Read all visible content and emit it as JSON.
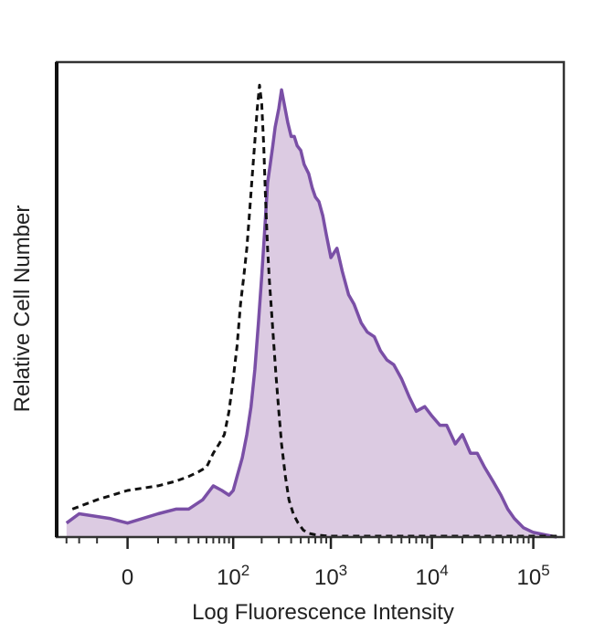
{
  "chart_data": {
    "type": "area",
    "title": "",
    "xlabel": "Log Fluorescence Intensity",
    "ylabel": "Relative Cell Number",
    "x_scale": "biexponential",
    "x_range": [
      -40,
      200000
    ],
    "y_range": [
      0,
      100
    ],
    "grid": false,
    "legend": "none",
    "x_ticks": [
      {
        "value": 0,
        "base": "0",
        "exp": ""
      },
      {
        "value": 100,
        "base": "10",
        "exp": "2"
      },
      {
        "value": 1000,
        "base": "10",
        "exp": "3"
      },
      {
        "value": 10000,
        "base": "10",
        "exp": "4"
      },
      {
        "value": 100000,
        "base": "10",
        "exp": "5"
      }
    ],
    "series": [
      {
        "style": "filled-solid",
        "color": "#7a4fa6",
        "fill": "#dccbe2",
        "x": [
          -30,
          -20,
          -5,
          0,
          10,
          20,
          30,
          45,
          60,
          75,
          90,
          100,
          110,
          125,
          140,
          155,
          170,
          185,
          200,
          215,
          230,
          245,
          260,
          275,
          300,
          320,
          340,
          370,
          400,
          430,
          460,
          500,
          540,
          600,
          650,
          700,
          760,
          830,
          900,
          1000,
          1150,
          1300,
          1500,
          1700,
          2000,
          2300,
          2700,
          3100,
          3600,
          4200,
          5000,
          6000,
          7000,
          8500,
          10000,
          12000,
          14000,
          17000,
          20000,
          24000,
          28000,
          33000,
          40000,
          48000,
          56000,
          65000,
          80000,
          100000,
          130000,
          170000
        ],
        "y": [
          3,
          5,
          4,
          3,
          5,
          6,
          6,
          8,
          11,
          10,
          9,
          10,
          13,
          17,
          22,
          28,
          36,
          46,
          56,
          66,
          76,
          80,
          84,
          88,
          92,
          96,
          93,
          89,
          86,
          86,
          84,
          83,
          80,
          78,
          75,
          73,
          72,
          69,
          65,
          60,
          62,
          57,
          52,
          50,
          46,
          44,
          43,
          40,
          38,
          37,
          34,
          30,
          27,
          28,
          26,
          24,
          24,
          20,
          22,
          18,
          18,
          15,
          12,
          9,
          6,
          4,
          2,
          1,
          0.5,
          0
        ]
      },
      {
        "style": "dashed",
        "color": "#111111",
        "x": [
          -25,
          -10,
          0,
          10,
          20,
          30,
          40,
          50,
          60,
          70,
          80,
          90,
          100,
          110,
          120,
          130,
          140,
          150,
          160,
          170,
          180,
          190,
          200,
          210,
          220,
          230,
          240,
          250,
          265,
          280,
          300,
          320,
          350,
          380,
          420,
          470,
          530,
          600,
          700,
          850,
          1000,
          10000,
          100000,
          170000
        ],
        "y": [
          6,
          8,
          10,
          11,
          12,
          13,
          14,
          15,
          18,
          20,
          22,
          27,
          34,
          41,
          50,
          56,
          62,
          70,
          78,
          85,
          92,
          97,
          93,
          84,
          72,
          62,
          55,
          50,
          42,
          35,
          27,
          20,
          13,
          8,
          5,
          3,
          1.5,
          0.8,
          0.5,
          0.3,
          0.2,
          0.2,
          0.2,
          0.2
        ]
      }
    ]
  }
}
